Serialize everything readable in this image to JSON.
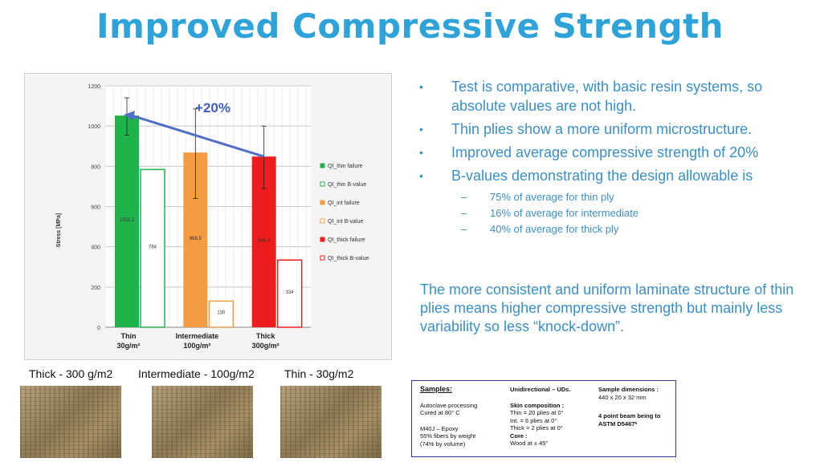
{
  "title": "Improved Compressive Strength",
  "chart_data": {
    "type": "bar",
    "ylabel": "Stress [MPa]",
    "ylim": [
      0,
      1200
    ],
    "yticks": [
      0,
      200,
      400,
      600,
      800,
      1000,
      1200
    ],
    "grid": true,
    "legend_position": "right",
    "categories": [
      {
        "line1": "Thin",
        "line2": "30g/m²"
      },
      {
        "line1": "Intermediate",
        "line2": "100g/m²"
      },
      {
        "line1": "Thick",
        "line2": "300g/m²"
      }
    ],
    "series": [
      {
        "name": "QI_thin failure",
        "color": "#1fb34c",
        "filled": true,
        "category": 0,
        "value": 1052.2,
        "label": "1052.2",
        "error": [
          955,
          1140
        ]
      },
      {
        "name": "QI_thin B-value",
        "color": "#1fb34c",
        "filled": false,
        "category": 0,
        "value": 784,
        "label": "784"
      },
      {
        "name": "QI_int failure",
        "color": "#f59b42",
        "filled": true,
        "category": 1,
        "value": 868.5,
        "label": "868.5",
        "error": [
          640,
          1085
        ]
      },
      {
        "name": "QI_int B-value",
        "color": "#f59b42",
        "filled": false,
        "category": 1,
        "value": 130,
        "label": "130"
      },
      {
        "name": "QI_thick failure",
        "color": "#ee1c1c",
        "filled": true,
        "category": 2,
        "value": 848.4,
        "label": "848.4",
        "error": [
          690,
          1000
        ]
      },
      {
        "name": "QI_thick B-value",
        "color": "#ee1c1c",
        "filled": false,
        "category": 2,
        "value": 334,
        "label": "334"
      }
    ],
    "annotation": "+20%"
  },
  "bullets": [
    "Test is comparative, with basic resin systems, so absolute values are not high.",
    "Thin plies show a more uniform microstructure.",
    "Improved average compressive strength of 20%",
    "B-values demonstrating the design allowable is"
  ],
  "sub_bullets": [
    "75% of average for thin ply",
    "16% of average for intermediate",
    "40% of average for thick ply"
  ],
  "summary": "The more consistent and uniform laminate structure of thin plies means higher compressive strength but mainly less variability so less “knock-down”.",
  "photos": [
    {
      "label": "Thick - 300 g/m2"
    },
    {
      "label": "Intermediate - 100g/m2"
    },
    {
      "label": "Thin - 30g/m2"
    }
  ],
  "samples": {
    "heading": "Samples:",
    "process": "Autoclave processing",
    "cure": "Cured at 80° C",
    "resin": "M40J – Epoxy",
    "fibers_weight": "55% fibers by weight",
    "fibers_volume": "(74% by volume)",
    "unidirectional": "Unidirectional – UDs.",
    "skin_heading": "Skin composition :",
    "thin": "Thin    = 20 plies at 0°",
    "int": "Int.    = 6 plies at 0°",
    "thick": "Thick  = 2 plies at 0°",
    "core_heading": "Core :",
    "core": "Wood at ± 45°",
    "dim_heading": "Sample dimensions :",
    "dims": "440 x 20 x 32 mm",
    "beam": "4 point beam being to",
    "astm": "ASTM D5467*"
  }
}
